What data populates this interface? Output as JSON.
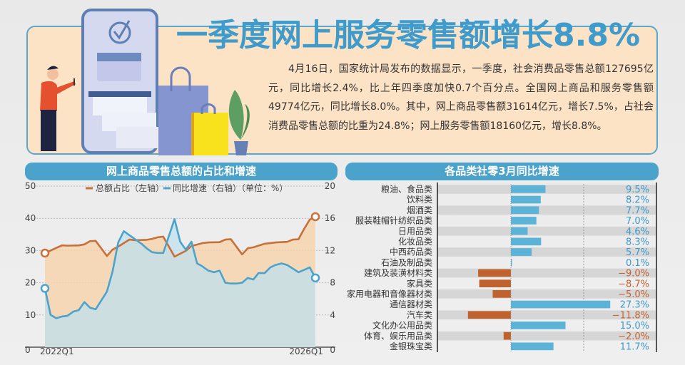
{
  "header": {
    "title": "一季度网上服务零售额增长8.8%",
    "paragraph": "4月16日，国家统计局发布的数据显示，一季度，社会消费品零售总额127695亿元，同比增长2.4%，比上年四季度加快0.7个百分点。全国网上商品和服务零售额49774亿元，同比增长8.0%。其中，网上商品零售额31614亿元，增长7.5%，占社会消费品零售总额的比重为24.8%；网上服务零售额18160亿元，增长8.8%。"
  },
  "colors": {
    "blue": "#4ba3cc",
    "orange": "#c8703a",
    "bar_pos": "#5bb3d8",
    "bar_neg": "#c0622e"
  },
  "chart_data": [
    {
      "type": "line",
      "title": "网上商品零售总额的占比和增速",
      "legend": [
        "总额占比（左轴）",
        "同比增速（右轴）（单位：%）"
      ],
      "legend_placement": "top",
      "x_labels": [
        "2022Q1",
        "2026Q1"
      ],
      "y_left": {
        "range": [
          0,
          50
        ],
        "ticks": [
          "0",
          "10",
          "20",
          "30",
          "40",
          "50"
        ]
      },
      "y_right": {
        "range": [
          0,
          20
        ],
        "ticks": [
          "0",
          "4",
          "8",
          "12",
          "16",
          "20"
        ]
      },
      "grid": true,
      "series": [
        {
          "name": "总额占比",
          "axis": "left",
          "points": [
            [
              0,
              29.2
            ],
            [
              3,
              31.6
            ],
            [
              4,
              31.5
            ],
            [
              6,
              31.6
            ],
            [
              7,
              31.9
            ],
            [
              8,
              32.9
            ],
            [
              9,
              33
            ],
            [
              11,
              28.3
            ],
            [
              12,
              30.3
            ],
            [
              13,
              31.2
            ],
            [
              14,
              32.3
            ],
            [
              15,
              33.4
            ],
            [
              16,
              33.2
            ],
            [
              18,
              33.3
            ],
            [
              19,
              33.6
            ],
            [
              20,
              34.1
            ],
            [
              21,
              34.3
            ],
            [
              23,
              28.1
            ],
            [
              24,
              29
            ],
            [
              25,
              29.9
            ],
            [
              26,
              31.4
            ],
            [
              28,
              32.3
            ],
            [
              29,
              32.5
            ],
            [
              31,
              32.6
            ],
            [
              32,
              33.4
            ],
            [
              33,
              33.5
            ],
            [
              35,
              28.8
            ],
            [
              36,
              30.7
            ],
            [
              37,
              31
            ],
            [
              39,
              32.1
            ],
            [
              41,
              32.5
            ],
            [
              43,
              32.7
            ],
            [
              44,
              33.4
            ],
            [
              45,
              33.5
            ],
            [
              46,
              36.7
            ],
            [
              47,
              39.6
            ],
            [
              48,
              40.5
            ]
          ]
        },
        {
          "name": "同比增速",
          "axis": "right",
          "points": [
            [
              0,
              7.3
            ],
            [
              1,
              4
            ],
            [
              2,
              3.6
            ],
            [
              3,
              3.8
            ],
            [
              4,
              3.9
            ],
            [
              5,
              4.4
            ],
            [
              6,
              4.6
            ],
            [
              7,
              5.6
            ],
            [
              8,
              4.9
            ],
            [
              9,
              4.7
            ],
            [
              10,
              5.8
            ],
            [
              11,
              6.9
            ],
            [
              12,
              9.4
            ],
            [
              13,
              13
            ],
            [
              14,
              14.4
            ],
            [
              15,
              13.9
            ],
            [
              16,
              13.4
            ],
            [
              17.2,
              12.8
            ],
            [
              18,
              12.3
            ],
            [
              19,
              11.8
            ],
            [
              20,
              11.7
            ],
            [
              21,
              11.7
            ],
            [
              23,
              15.9
            ],
            [
              24,
              13.1
            ],
            [
              25,
              12.1
            ],
            [
              26,
              13.1
            ],
            [
              27,
              10.4
            ],
            [
              27.8,
              10.1
            ],
            [
              29,
              9.5
            ],
            [
              30,
              9.3
            ],
            [
              31,
              9.5
            ],
            [
              32,
              8
            ],
            [
              33,
              7.9
            ],
            [
              34,
              7.9
            ],
            [
              35,
              8
            ],
            [
              36,
              8.6
            ],
            [
              37,
              8.4
            ],
            [
              37.9,
              9.2
            ],
            [
              39,
              9.2
            ],
            [
              40,
              9.9
            ],
            [
              40.9,
              10.2
            ],
            [
              42,
              10.4
            ],
            [
              43,
              10.2
            ],
            [
              43.9,
              9.8
            ],
            [
              45,
              9.3
            ],
            [
              46,
              9.6
            ],
            [
              47,
              9.9
            ],
            [
              48,
              8.6
            ]
          ]
        }
      ]
    },
    {
      "type": "bar",
      "orientation": "horizontal",
      "title": "各品类社零3月同比增速",
      "xlim": [
        -12,
        28
      ],
      "categories": [
        "粮油、食品类",
        "饮料类",
        "烟酒类",
        "服装鞋帽针纺织品类",
        "日用品类",
        "化妆品类",
        "中西药品类",
        "石油及制品类",
        "建筑及装潢材料类",
        "家具类",
        "家用电器和音像器材类",
        "通信器材类",
        "汽车类",
        "文化办公用品类",
        "体育、娱乐用品类",
        "金银珠宝类"
      ],
      "values": [
        9.5,
        8.2,
        7.7,
        7.0,
        4.6,
        8.3,
        5.7,
        0.1,
        -9.0,
        -8.7,
        -5.0,
        27.3,
        -11.8,
        15.0,
        -2.0,
        11.7
      ],
      "value_labels": [
        "9.5%",
        "8.2%",
        "7.7%",
        "7.0%",
        "4.6%",
        "8.3%",
        "5.7%",
        "0.1%",
        "−9.0%",
        "−8.7%",
        "−5.0%",
        "27.3%",
        "−11.8%",
        "15.0%",
        "−2.0%",
        "11.7%"
      ]
    }
  ]
}
